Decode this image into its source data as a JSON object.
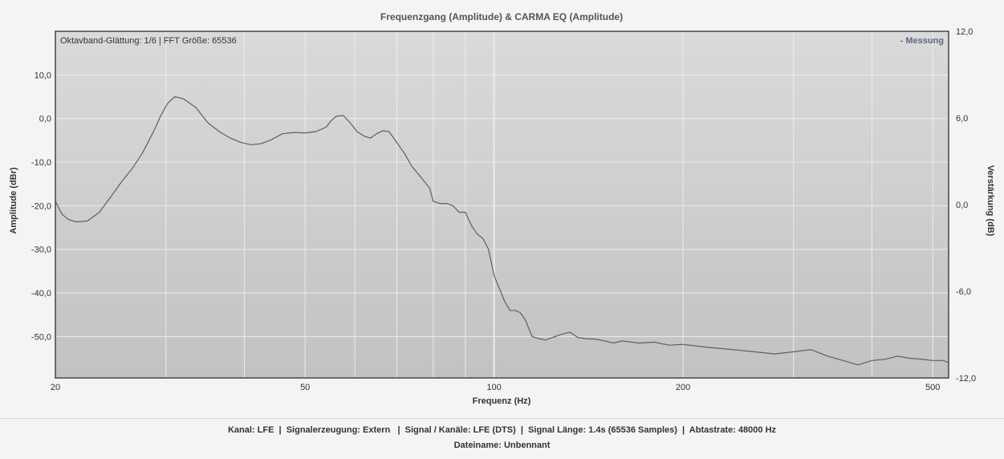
{
  "colors": {
    "plot_bg_top": "#dadada",
    "plot_bg_bottom": "#c2c2c2",
    "grid": "#ececec",
    "line": "#56606e",
    "legend_text": "#5b6a80",
    "border": "#444444"
  },
  "chart_data": {
    "type": "line",
    "title": "Frequenzgang (Amplitude) & CARMA EQ (Amplitude)",
    "info_text": "Oktavband-Glättung: 1/6 | FFT Größe: 65536",
    "legend": "- Messung",
    "legend_position": "top-right",
    "xlabel": "Frequenz (Hz)",
    "ylabel_left": "Amplitude (dBr)",
    "ylabel_right": "Verstärkung (dB)",
    "x_scale": "log",
    "xlim": [
      20,
      530
    ],
    "ylim_left": [
      -59.5,
      20
    ],
    "ylim_right": [
      -12,
      12
    ],
    "x_ticks": [
      20,
      50,
      100,
      200,
      500
    ],
    "x_tick_labels": [
      "20",
      "50",
      "100",
      "200",
      "500"
    ],
    "y_ticks_left": [
      10,
      0,
      -10,
      -20,
      -30,
      -40,
      -50
    ],
    "y_tick_labels_left": [
      "10,0",
      "0,0",
      "-10,0",
      "-20,0",
      "-30,0",
      "-40,0",
      "-50,0"
    ],
    "y_ticks_right": [
      12,
      6,
      0,
      -6,
      -12
    ],
    "y_tick_labels_right": [
      "12,0",
      "6,0",
      "0,0",
      "-6,0",
      "-12,0"
    ],
    "grid": true,
    "series": [
      {
        "name": "Messung",
        "x": [
          20,
          20.5,
          21,
          21.6,
          22.5,
          23.5,
          24.5,
          25.5,
          26.5,
          27.5,
          28.2,
          28.9,
          29.4,
          30.2,
          31,
          32,
          33.5,
          35,
          36.5,
          38,
          39.5,
          41,
          42.5,
          44,
          46,
          48,
          50,
          52,
          54,
          55,
          56,
          57.5,
          59,
          60.5,
          62,
          63.5,
          65,
          66.5,
          68,
          70,
          72,
          74,
          76,
          78,
          79,
          80,
          82,
          84,
          86,
          88,
          90,
          92,
          94,
          96,
          98,
          100,
          102,
          104,
          106,
          108,
          110,
          112,
          115,
          118,
          121,
          124,
          128,
          132,
          136,
          140,
          145,
          150,
          155,
          160,
          170,
          180,
          190,
          200,
          220,
          240,
          260,
          280,
          300,
          320,
          340,
          360,
          380,
          400,
          420,
          440,
          460,
          480,
          500,
          520,
          530
        ],
        "y": [
          -19,
          -22,
          -23.2,
          -23.7,
          -23.5,
          -21.5,
          -18,
          -14.5,
          -11.5,
          -8,
          -5,
          -2,
          0.5,
          3.5,
          5,
          4.5,
          2.5,
          -1,
          -3,
          -4.5,
          -5.5,
          -6,
          -5.8,
          -5,
          -3.5,
          -3.2,
          -3.3,
          -3,
          -2,
          -0.5,
          0.5,
          0.7,
          -1,
          -3,
          -4,
          -4.5,
          -3.5,
          -2.8,
          -3,
          -5.5,
          -8,
          -11,
          -13,
          -15,
          -16,
          -19,
          -19.5,
          -19.5,
          -20,
          -21.5,
          -21.5,
          -24.5,
          -26.5,
          -27.5,
          -30,
          -36,
          -39,
          -42,
          -44,
          -44,
          -44.5,
          -46,
          -50,
          -50.5,
          -50.8,
          -50.2,
          -49.5,
          -49,
          -50.2,
          -50.5,
          -50.6,
          -51,
          -51.5,
          -51,
          -51.5,
          -51.3,
          -52,
          -51.8,
          -52.5,
          -53,
          -53.5,
          -54,
          -53.5,
          -53,
          -54.5,
          -55.5,
          -56.5,
          -55.5,
          -55.2,
          -54.5,
          -55,
          -55.2,
          -55.5,
          -55.5,
          -56
        ]
      }
    ]
  },
  "footer": {
    "line1": "Kanal: LFE  |  Signalerzeugung: Extern   |  Signal / Kanäle: LFE (DTS)  |  Signal Länge: 1.4s (65536 Samples)  |  Abtastrate: 48000 Hz",
    "line2": "Dateiname: Unbennant"
  }
}
